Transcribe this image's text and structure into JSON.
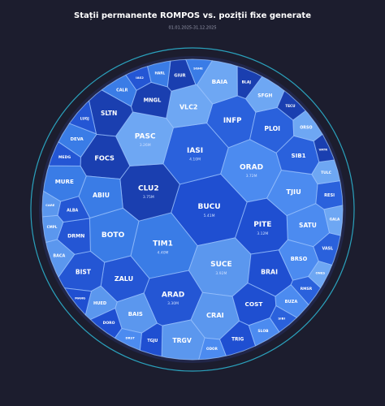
{
  "chart_data": {
    "type": "voronoi-treemap",
    "title": "Stații permanente ROMPOS vs. poziții fixe generate",
    "subtitle": "01.01.2025-31.12.2025",
    "palette": [
      "#1f4fd1",
      "#3a7ce6",
      "#2a61dc",
      "#5b97ee",
      "#1a3fb0",
      "#4c8bf0",
      "#2456d4",
      "#6ea7f3"
    ],
    "ring_color": "#2cb0cc",
    "cells": [
      {
        "name": "BUCU",
        "value": 5410000,
        "value_label": "5.41M"
      },
      {
        "name": "TIM1",
        "value": 4400000,
        "value_label": "4.40M"
      },
      {
        "name": "IASI",
        "value": 4100000,
        "value_label": "4.10M"
      },
      {
        "name": "SUCE",
        "value": 3920000,
        "value_label": "3.92M"
      },
      {
        "name": "CLU2",
        "value": 3750000,
        "value_label": "3.75M"
      },
      {
        "name": "ORAD",
        "value": 3720000,
        "value_label": "3.72M"
      },
      {
        "name": "ARAD",
        "value": 3300000,
        "value_label": "3.30M"
      },
      {
        "name": "PASC",
        "value": 3260000,
        "value_label": "3.26M"
      },
      {
        "name": "PITE",
        "value": 3120000,
        "value_label": "3.12M"
      },
      {
        "name": "BOTO",
        "value": 2900000
      },
      {
        "name": "INFP",
        "value": 2500000
      },
      {
        "name": "CRAI",
        "value": 2300000
      },
      {
        "name": "FOCS",
        "value": 2300000
      },
      {
        "name": "TJIU",
        "value": 2300000
      },
      {
        "name": "ZALU",
        "value": 2200000
      },
      {
        "name": "VLC2",
        "value": 2100000
      },
      {
        "name": "BRAI",
        "value": 2100000
      },
      {
        "name": "ABIU",
        "value": 2000000
      },
      {
        "name": "PLOI",
        "value": 2000000
      },
      {
        "name": "TRGV",
        "value": 2000000
      },
      {
        "name": "SLTN",
        "value": 1900000
      },
      {
        "name": "SATU",
        "value": 1900000
      },
      {
        "name": "BIST",
        "value": 1900000
      },
      {
        "name": "BAIA",
        "value": 1800000
      },
      {
        "name": "COST",
        "value": 1800000
      },
      {
        "name": "MURE",
        "value": 1700000
      },
      {
        "name": "SIB1",
        "value": 1700000
      },
      {
        "name": "BAIS",
        "value": 1600000
      },
      {
        "name": "MNGL",
        "value": 1500000
      },
      {
        "name": "BRSO",
        "value": 1500000
      },
      {
        "name": "DRMN",
        "value": 1300000
      },
      {
        "name": "SFGH",
        "value": 1200000
      },
      {
        "name": "TRIG",
        "value": 1100000
      },
      {
        "name": "DEVA",
        "value": 1000000
      },
      {
        "name": "RESI",
        "value": 900000
      },
      {
        "name": "HUED",
        "value": 900000
      },
      {
        "name": "GIUR",
        "value": 900000
      },
      {
        "name": "BUZA",
        "value": 900000
      },
      {
        "name": "ALBA",
        "value": 800000
      },
      {
        "name": "ORSO",
        "value": 800000
      },
      {
        "name": "TGJU",
        "value": 800000
      },
      {
        "name": "CALR",
        "value": 800000
      },
      {
        "name": "VASL",
        "value": 800000
      },
      {
        "name": "BACA",
        "value": 800000
      },
      {
        "name": "BLAJ",
        "value": 700000
      },
      {
        "name": "SLOB",
        "value": 700000
      },
      {
        "name": "MEDG",
        "value": 700000
      },
      {
        "name": "TULC",
        "value": 700000
      },
      {
        "name": "DORO",
        "value": 700000
      },
      {
        "name": "HARL",
        "value": 600000
      },
      {
        "name": "RMSR",
        "value": 600000
      },
      {
        "name": "CMPL",
        "value": 600000
      },
      {
        "name": "TECU",
        "value": 600000
      },
      {
        "name": "ODOR",
        "value": 600000
      },
      {
        "name": "LUGJ",
        "value": 600000
      },
      {
        "name": "GALA",
        "value": 600000
      },
      {
        "name": "MANG",
        "value": 500000
      },
      {
        "name": "SGHE",
        "value": 500000
      },
      {
        "name": "SIBI",
        "value": 500000
      },
      {
        "name": "CARE",
        "value": 500000
      },
      {
        "name": "VATR",
        "value": 500000
      },
      {
        "name": "DRST",
        "value": 500000
      },
      {
        "name": "IAS2",
        "value": 500000
      },
      {
        "name": "ONES",
        "value": 500000
      }
    ]
  }
}
